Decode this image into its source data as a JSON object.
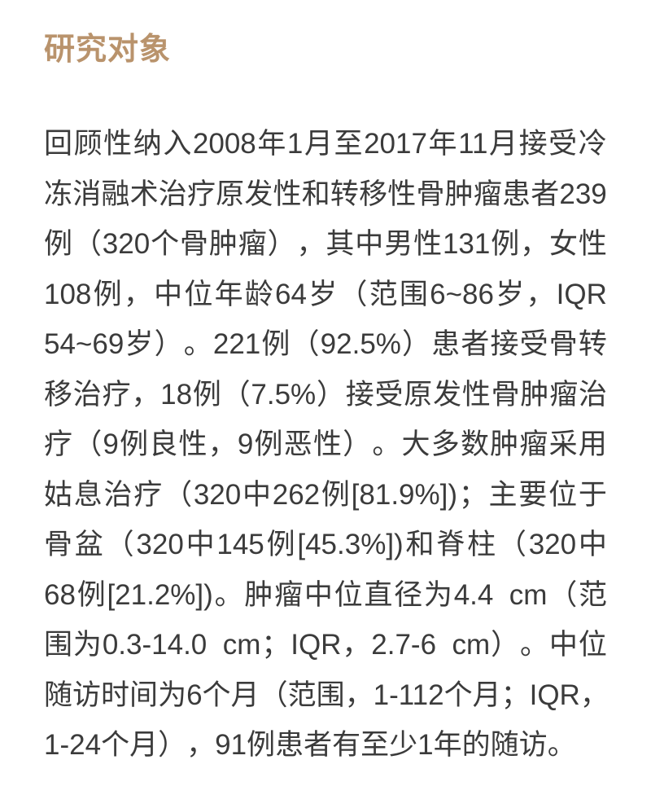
{
  "heading": {
    "text": "研究对象"
  },
  "body": {
    "lines": [
      "回顾性纳入2008年1月至2017年11月接受冷",
      "冻消融术治疗原发性和转移性骨肿瘤患者239",
      "例（320个骨肿瘤），其中男性131例，女性",
      "108例，中位年龄64岁（范围6~86岁，IQR",
      "54~69岁）。221例（92.5%）患者接受骨转",
      "移治疗，18例（7.5%）接受原发性骨肿瘤治",
      "疗（9例良性，9例恶性）。大多数肿瘤采用",
      "姑息治疗（320中262例[81.9%])；主要位于",
      "骨盆（320中145例[45.3%])和脊柱（320中",
      "68例[21.2%])。肿瘤中位直径为4.4  cm（范",
      "围为0.3-14.0  cm；IQR，2.7-6  cm）。中位",
      "随访时间为6个月（范围，1-112个月；IQR，",
      "1-24个月），91例患者有至少1年的随访。"
    ]
  },
  "colors": {
    "heading": "#b9936c",
    "text": "#3b3b3b",
    "background": "#ffffff"
  }
}
